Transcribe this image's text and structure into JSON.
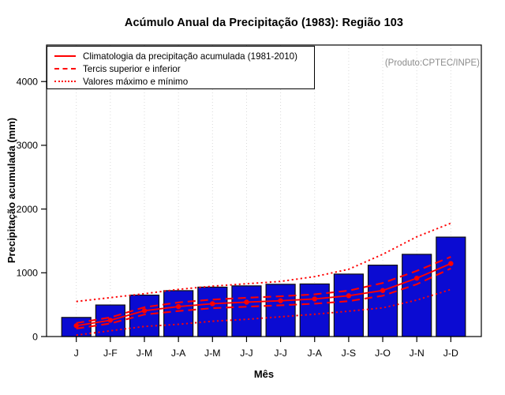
{
  "chart_data": {
    "type": "bar",
    "title": "Acúmulo Anual da Precipitação (1983): Região 103",
    "xlabel": "Mês",
    "ylabel": "Precipitação acumulada (mm)",
    "watermark": "(Produto:CPTEC/INPE)",
    "categories": [
      "J",
      "J-F",
      "J-M",
      "J-A",
      "J-M",
      "J-J",
      "J-J",
      "J-A",
      "J-S",
      "J-O",
      "J-N",
      "J-D"
    ],
    "bar_values": [
      300,
      495,
      650,
      720,
      775,
      795,
      820,
      825,
      980,
      1120,
      1290,
      1560
    ],
    "series": [
      {
        "name": "Climatologia da precipitação acumulada (1981-2010)",
        "style": "solid",
        "markers": true,
        "values": [
          170,
          255,
          405,
          470,
          515,
          540,
          562,
          590,
          640,
          722,
          915,
          1145
        ]
      },
      {
        "name": "Tercil superior",
        "style": "dashed",
        "markers": false,
        "values": [
          212,
          300,
          460,
          535,
          580,
          608,
          632,
          662,
          720,
          840,
          1030,
          1250
        ]
      },
      {
        "name": "Tercil inferior",
        "style": "dashed",
        "markers": false,
        "values": [
          125,
          205,
          345,
          400,
          445,
          468,
          490,
          515,
          555,
          640,
          820,
          1068
        ]
      },
      {
        "name": "Valor máximo",
        "style": "dotted",
        "markers": false,
        "values": [
          550,
          610,
          672,
          740,
          790,
          828,
          865,
          940,
          1055,
          1290,
          1565,
          1778
        ]
      },
      {
        "name": "Valor mínimo",
        "style": "dotted",
        "markers": false,
        "values": [
          22,
          90,
          158,
          192,
          240,
          270,
          310,
          350,
          398,
          450,
          572,
          738
        ]
      }
    ],
    "legend": [
      "Climatologia da precipitação acumulada (1981-2010)",
      "Tercis superior e inferior",
      "Valores máximo e mínimo"
    ],
    "legend_position": "top-left",
    "yticks": [
      0,
      1000,
      2000,
      3000,
      4000
    ],
    "ylim": [
      0,
      4573
    ],
    "grid": "vertical-dotted",
    "colors": {
      "bar": "#0B0BD2",
      "bar_border": "#101010",
      "line": "#FF0000",
      "grid": "#D9D9D9",
      "axis": "#000000",
      "watermark": "#8C8C8C"
    }
  }
}
